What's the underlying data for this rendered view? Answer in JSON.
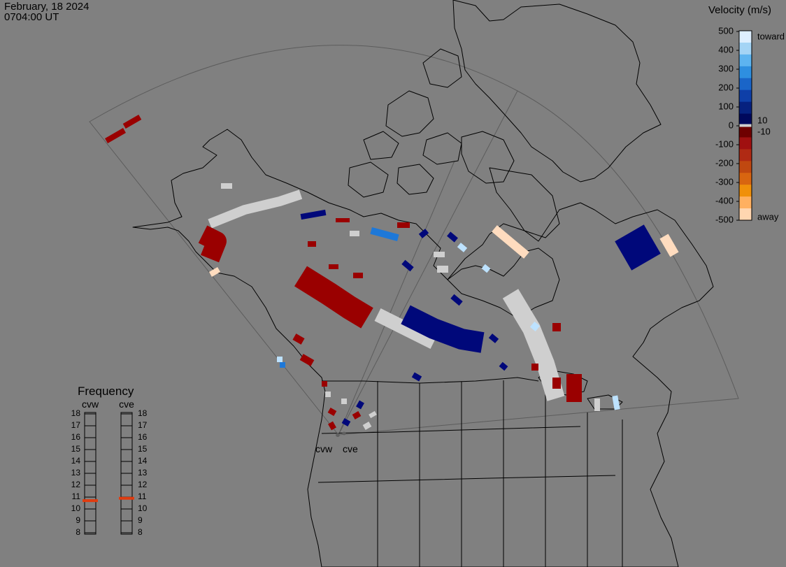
{
  "header": {
    "date": "February, 18 2024",
    "time": "0704:00 UT"
  },
  "velocity_legend": {
    "title": "Velocity (m/s)",
    "ticks": [
      "500",
      "400",
      "300",
      "200",
      "100",
      "0",
      "-100",
      "-200",
      "-300",
      "-400",
      "-500"
    ],
    "inner_labels": [
      "10",
      "-10"
    ],
    "end_labels": {
      "toward": "toward",
      "away": "away"
    },
    "colors": [
      "#deefff",
      "#a4d4f5",
      "#5db4f0",
      "#2e8fe0",
      "#1a65c8",
      "#0e3fa8",
      "#06217f",
      "#00085c",
      "#6e0000",
      "#a01010",
      "#b02a14",
      "#c04810",
      "#d86510",
      "#f0900a",
      "#ffb060",
      "#ffd6b0"
    ]
  },
  "frequency_panel": {
    "title": "Frequency",
    "radars": [
      "cvw",
      "cve"
    ],
    "scale": [
      "18",
      "17",
      "16",
      "15",
      "14",
      "13",
      "12",
      "11",
      "10",
      "9",
      "8"
    ],
    "values_mhz": [
      10.7,
      10.9
    ],
    "marker_color": "#e03c10"
  },
  "radar_sites": [
    "cvw",
    "cve"
  ],
  "map_colors": {
    "background": "#808080",
    "coastline": "#000000",
    "fov": "#5a5a5a",
    "ground_scatter": "#cfcfcf",
    "deep_red": "#9a0000",
    "navy": "#00087a",
    "mid_blue": "#1e78d8",
    "light_blue": "#bde2ff",
    "peach": "#ffdcbf"
  }
}
